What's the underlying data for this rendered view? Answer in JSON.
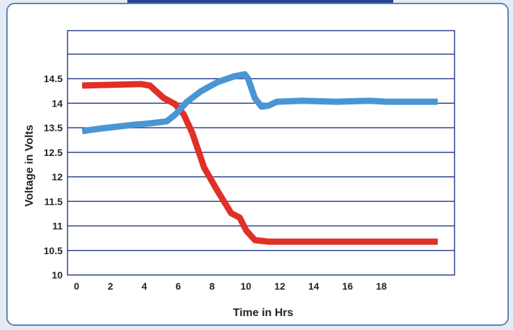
{
  "chart_data": {
    "type": "line",
    "xlabel": "Time in Hrs",
    "ylabel": "Voltage in Volts",
    "xlim": [
      0,
      21
    ],
    "ylim": [
      10,
      14.5
    ],
    "x_ticks": [
      "0",
      "2",
      "4",
      "6",
      "8",
      "10",
      "12",
      "14",
      "16",
      "18"
    ],
    "y_ticks": [
      "10",
      "10.5",
      "11",
      "11.5",
      "12",
      "12.5",
      "13.5",
      "14",
      "14.5"
    ],
    "grid": "horizontal",
    "series": [
      {
        "color": "#e03027",
        "points": [
          [
            0,
            13.86
          ],
          [
            3.5,
            13.89
          ],
          [
            4,
            13.86
          ],
          [
            4.8,
            13.61
          ],
          [
            5.5,
            13.48
          ],
          [
            6,
            13.27
          ],
          [
            6.5,
            12.9
          ],
          [
            7.2,
            12.19
          ],
          [
            8,
            11.71
          ],
          [
            8.8,
            11.26
          ],
          [
            9.3,
            11.17
          ],
          [
            9.7,
            10.9
          ],
          [
            10.2,
            10.71
          ],
          [
            11,
            10.68
          ],
          [
            21,
            10.68
          ]
        ]
      },
      {
        "color": "#4a95d3",
        "points": [
          [
            0,
            12.93
          ],
          [
            1,
            12.98
          ],
          [
            2,
            13.02
          ],
          [
            3,
            13.06
          ],
          [
            4,
            13.09
          ],
          [
            5,
            13.13
          ],
          [
            5.5,
            13.27
          ],
          [
            6.2,
            13.53
          ],
          [
            7,
            13.74
          ],
          [
            8,
            13.93
          ],
          [
            9,
            14.05
          ],
          [
            9.6,
            14.09
          ],
          [
            9.8,
            14.0
          ],
          [
            10.2,
            13.6
          ],
          [
            10.6,
            13.43
          ],
          [
            11,
            13.45
          ],
          [
            11.5,
            13.53
          ],
          [
            13,
            13.55
          ],
          [
            15,
            13.53
          ],
          [
            17,
            13.55
          ],
          [
            18,
            13.53
          ],
          [
            21,
            13.53
          ]
        ]
      }
    ]
  }
}
